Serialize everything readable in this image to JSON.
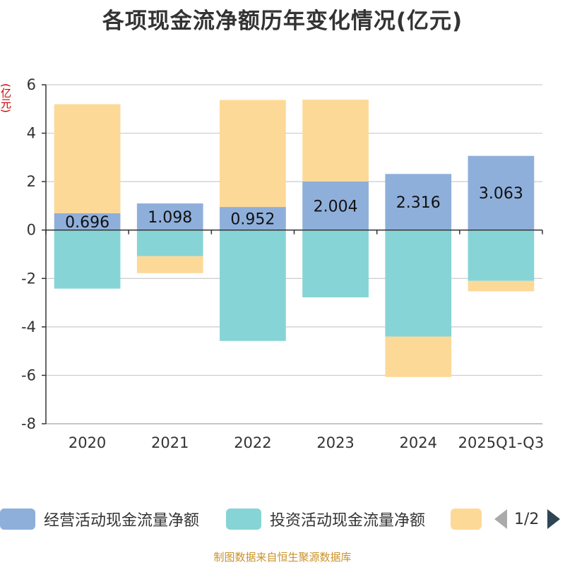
{
  "chart_data": {
    "type": "bar",
    "stacked": true,
    "title": "各项现金流净额历年变化情况(亿元)",
    "ylabel": "(亿元)",
    "ylim": [
      -8,
      6
    ],
    "yticks": [
      6,
      4,
      2,
      0,
      -2,
      -4,
      -6,
      -8
    ],
    "categories": [
      "2020",
      "2021",
      "2022",
      "2023",
      "2024",
      "2025Q1-Q3"
    ],
    "series": [
      {
        "name": "经营活动现金流量净额",
        "color": "#8fafdb",
        "values": [
          0.696,
          1.098,
          0.952,
          2.004,
          2.316,
          3.063
        ],
        "labels": [
          "0.696",
          "1.098",
          "0.952",
          "2.004",
          "2.316",
          "3.063"
        ]
      },
      {
        "name": "投资活动现金流量净额",
        "color": "#87d4d6",
        "values": [
          -2.42,
          -1.08,
          -4.58,
          -2.78,
          -4.4,
          -2.1
        ]
      },
      {
        "name": "",
        "color": "#fdd998",
        "values": [
          4.5,
          -0.7,
          4.42,
          3.38,
          -1.67,
          -0.43
        ]
      }
    ],
    "legend_position": "bottom",
    "grid": true
  },
  "legend": {
    "items": [
      "经营活动现金流量净额",
      "投资活动现金流量净额",
      ""
    ],
    "page": "1/2"
  },
  "source": "制图数据来自恒生聚源数据库"
}
